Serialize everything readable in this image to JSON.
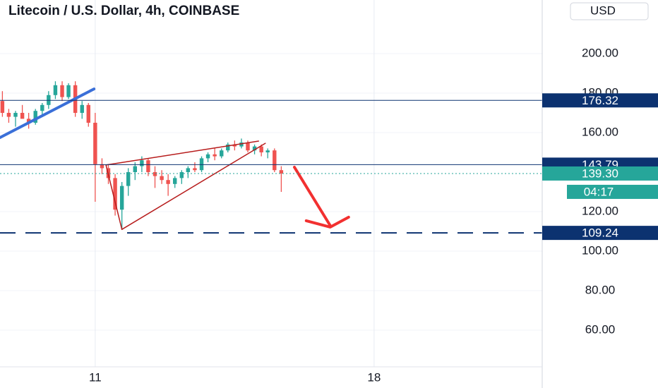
{
  "chart_data": {
    "type": "candlestick",
    "title": "Litecoin / U.S. Dollar, 4h, COINBASE",
    "currency": "USD",
    "up_color": "#26a69a",
    "down_color": "#ef5350",
    "grid": true,
    "xlim": [
      8.61,
      22.22
    ],
    "ylim": [
      41.43,
      227.14
    ],
    "xticks": [
      11,
      18
    ],
    "yticks": [
      {
        "value": 60,
        "label": "60.00"
      },
      {
        "value": 80,
        "label": "80.00"
      },
      {
        "value": 100,
        "label": "100.00"
      },
      {
        "value": 120,
        "label": "120.00"
      },
      {
        "value": 160,
        "label": "160.00"
      },
      {
        "value": 180,
        "label": "180.00"
      },
      {
        "value": 200,
        "label": "200.00"
      }
    ],
    "x": [
      8.67,
      8.83,
      9,
      9.17,
      9.33,
      9.5,
      9.67,
      9.83,
      10,
      10.17,
      10.33,
      10.5,
      10.67,
      10.83,
      11,
      11.17,
      11.33,
      11.5,
      11.67,
      11.83,
      12,
      12.17,
      12.33,
      12.5,
      12.67,
      12.83,
      13,
      13.17,
      13.33,
      13.5,
      13.67,
      13.83,
      14,
      14.17,
      14.33,
      14.5,
      14.67,
      14.83,
      15,
      15.17,
      15.33,
      15.5,
      15.67
    ],
    "open": [
      176,
      170,
      168,
      170,
      167,
      165,
      171,
      174,
      179,
      184,
      178,
      184,
      170,
      174,
      165,
      144,
      142,
      137,
      121,
      133,
      140,
      143,
      146,
      140,
      138,
      136,
      134,
      137,
      140,
      142,
      141,
      147,
      149,
      148,
      151,
      154,
      153,
      155,
      151,
      153,
      150,
      151,
      141
    ],
    "high": [
      181,
      172,
      171,
      174,
      170,
      172,
      175,
      181,
      186,
      186,
      185,
      186,
      176,
      175,
      170,
      147,
      144,
      139,
      135,
      142,
      145,
      148,
      147,
      143,
      141,
      139,
      138,
      141,
      143,
      145,
      148,
      150,
      152,
      152,
      155,
      156,
      157,
      156,
      154,
      154,
      152,
      152,
      143
    ],
    "low": [
      168,
      165,
      163,
      168,
      162,
      164,
      168,
      172,
      177,
      176,
      177,
      168,
      167,
      163,
      125,
      139,
      134,
      118,
      111,
      128,
      136,
      140,
      138,
      132,
      134,
      128,
      132,
      134,
      137,
      140,
      140,
      145,
      146,
      147,
      150,
      151,
      152,
      150,
      149,
      148,
      147,
      140,
      130
    ],
    "close": [
      170,
      168,
      170,
      167,
      165,
      171,
      174,
      179,
      184,
      178,
      184,
      170,
      174,
      165,
      144,
      142,
      137,
      121,
      133,
      140,
      143,
      146,
      140,
      138,
      136,
      134,
      137,
      140,
      142,
      141,
      147,
      149,
      148,
      151,
      154,
      153,
      155,
      151,
      153,
      150,
      151,
      141,
      139.3
    ],
    "price_lines": [
      {
        "value": 176.32,
        "color": "#0c3270",
        "style": "solid"
      },
      {
        "value": 143.79,
        "color": "#0c3270",
        "style": "solid"
      },
      {
        "value": 139.3,
        "label": "139.30",
        "color": "#26a69a",
        "style": "dotted",
        "countdown": "04:17"
      },
      {
        "value": 109.24,
        "color": "#0c3270",
        "style": "dashed"
      }
    ],
    "drawings": [
      {
        "kind": "line",
        "color": "#3a6fd8",
        "width": 4,
        "points": [
          [
            8.61,
            157.5
          ],
          [
            10.97,
            182.1
          ]
        ]
      },
      {
        "kind": "line",
        "color": "#b71c1c",
        "width": 1.5,
        "points": [
          [
            11.27,
            143.6
          ],
          [
            15.1,
            155.7
          ]
        ]
      },
      {
        "kind": "line",
        "color": "#b71c1c",
        "width": 1.5,
        "points": [
          [
            11.67,
            111
          ],
          [
            15.27,
            154.6
          ]
        ]
      },
      {
        "kind": "line",
        "color": "#b71c1c",
        "width": 1.5,
        "points": [
          [
            11.27,
            143.6
          ],
          [
            11.67,
            111
          ]
        ]
      },
      {
        "kind": "arrow",
        "color": "#f23030",
        "width": 4,
        "points": [
          [
            16.0,
            142.5
          ],
          [
            16.9,
            112.9
          ]
        ]
      }
    ]
  }
}
